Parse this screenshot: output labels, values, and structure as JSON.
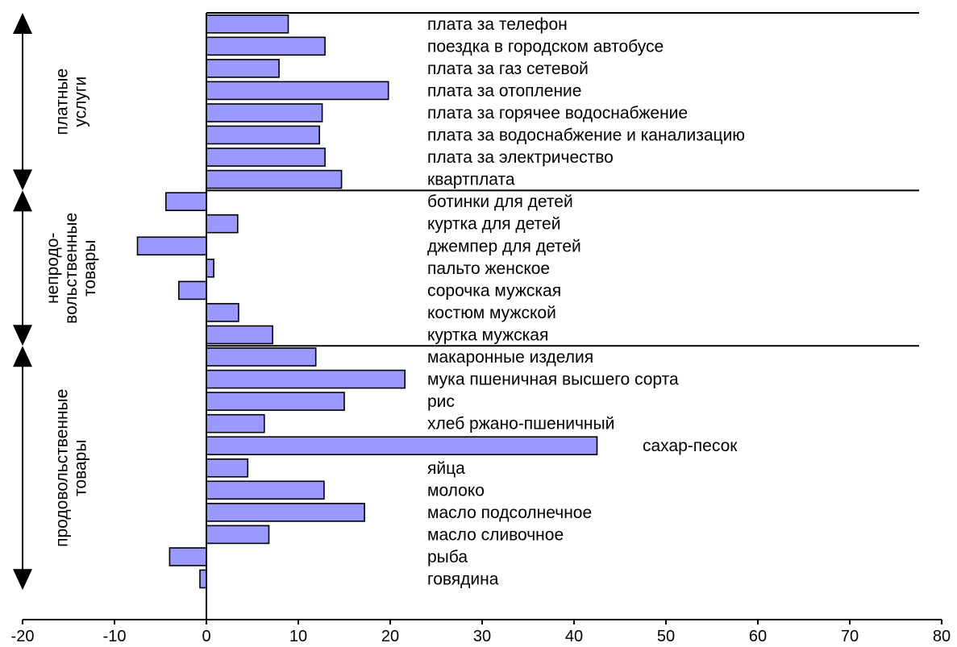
{
  "chart_data": {
    "type": "bar",
    "orientation": "horizontal",
    "xlim": [
      -20,
      80
    ],
    "xticks": [
      -20,
      -10,
      0,
      10,
      20,
      30,
      40,
      50,
      60,
      70,
      80
    ],
    "bar_color": "#9999ff",
    "groups": [
      {
        "label": [
          "платные",
          "услуги"
        ],
        "categories": [
          "плата  за телефон",
          "поездка в городском автобусе",
          "плата  за газ сетевой",
          "плата  за отопление",
          "плата  за горячее водоснабжение",
          "плата  за водоснабжение и канализацию",
          "плата  за электричество",
          "квартплата"
        ],
        "values": [
          8.9,
          12.9,
          7.9,
          19.8,
          12.6,
          12.3,
          12.9,
          14.7
        ]
      },
      {
        "label": [
          "непродо-",
          "вольственные",
          "товары"
        ],
        "categories": [
          "ботинки для детей",
          "куртка для детей",
          "джемпер для детей",
          "пальто женское",
          "сорочка мужская",
          "костюм мужской",
          "куртка мужская"
        ],
        "values": [
          -4.4,
          3.4,
          -7.5,
          0.8,
          -3.0,
          3.5,
          7.2
        ]
      },
      {
        "label": [
          "продовольственные",
          "товары"
        ],
        "categories": [
          "макаронные изделия",
          "мука пшеничная   высшего сорта",
          "рис",
          "хлеб ржано-пшеничный",
          "сахар-песок",
          "яйца",
          "молоко",
          "масло подсолнечное",
          "масло сливочное",
          "рыба",
          "говядина"
        ],
        "values": [
          11.9,
          21.6,
          15.0,
          6.3,
          42.5,
          4.5,
          12.8,
          17.2,
          6.8,
          -4.0,
          -0.7
        ]
      }
    ]
  }
}
